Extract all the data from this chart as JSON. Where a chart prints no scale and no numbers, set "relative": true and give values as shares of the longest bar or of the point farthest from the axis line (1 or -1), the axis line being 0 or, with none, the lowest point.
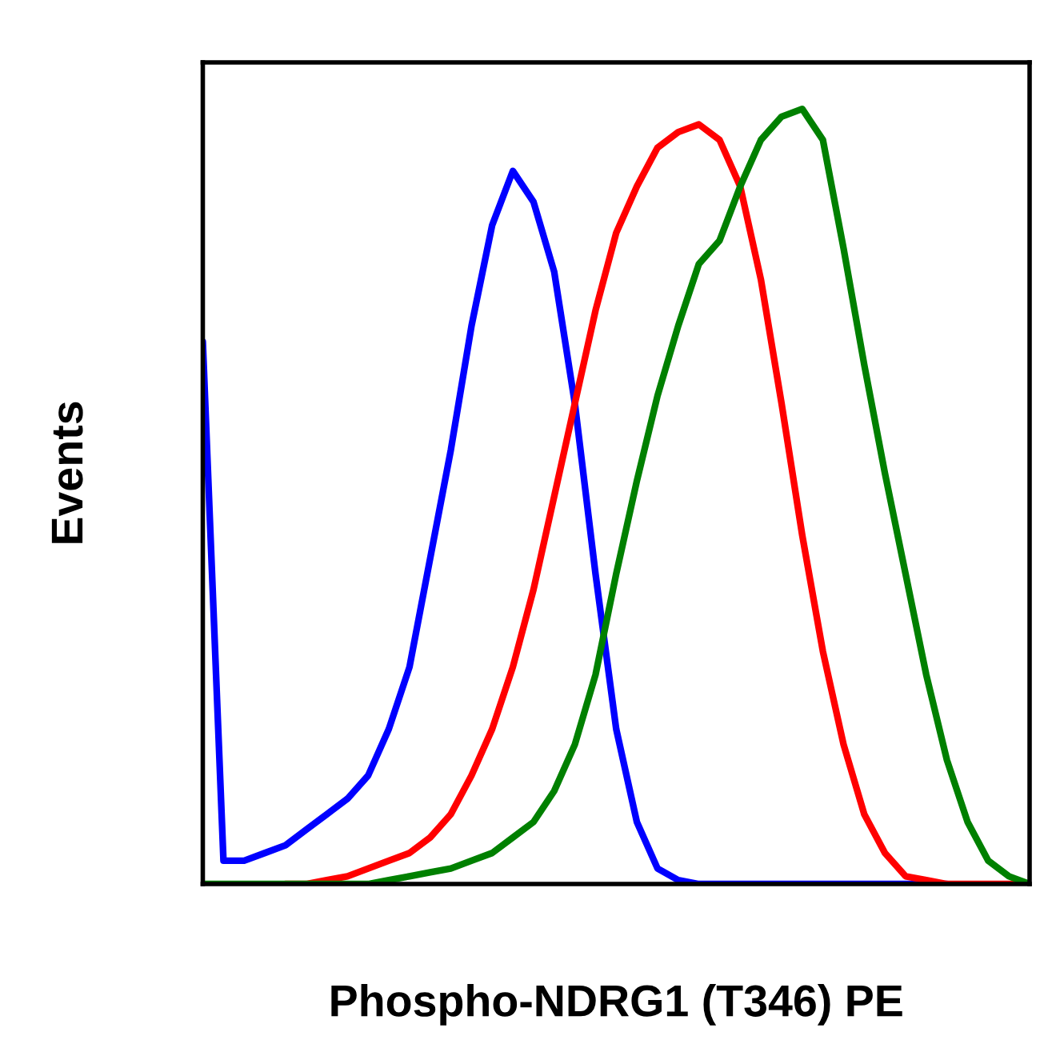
{
  "chart_data": {
    "type": "line",
    "relative": true,
    "xlabel": "Phospho-NDRG1 (T346) PE",
    "ylabel": "Events",
    "tick_labels": false,
    "grid": false,
    "legend": false,
    "categories": [
      null,
      null,
      null,
      null,
      null,
      null,
      null,
      null,
      null,
      null,
      null,
      null,
      null,
      null,
      null,
      null,
      null,
      null,
      null,
      null,
      null,
      null,
      null,
      null,
      null,
      null,
      null,
      null,
      null,
      null,
      null,
      null,
      null,
      null,
      null,
      null,
      null,
      null,
      null,
      null,
      null
    ],
    "series": [
      {
        "color": "#0000ff",
        "values": [
          0.7,
          0.03,
          0.03,
          0.04,
          0.05,
          0.07,
          0.09,
          0.11,
          0.14,
          0.2,
          0.28,
          0.42,
          0.56,
          0.72,
          0.85,
          0.92,
          0.88,
          0.79,
          0.62,
          0.4,
          0.2,
          0.08,
          0.02,
          0.005,
          0,
          0,
          0,
          0,
          0,
          0,
          0,
          0,
          0,
          0,
          0,
          0,
          0,
          null,
          null,
          null,
          null
        ]
      },
      {
        "color": "#ff0000",
        "values": [
          null,
          null,
          null,
          null,
          0,
          0,
          0.005,
          0.01,
          0.02,
          0.03,
          0.04,
          0.06,
          0.09,
          0.14,
          0.2,
          0.28,
          0.38,
          0.5,
          0.62,
          0.74,
          0.84,
          0.9,
          0.95,
          0.97,
          0.98,
          0.96,
          0.9,
          0.78,
          0.62,
          0.45,
          0.3,
          0.18,
          0.09,
          0.04,
          0.01,
          0.005,
          0,
          0,
          0,
          0,
          0
        ]
      },
      {
        "color": "#008000",
        "values": [
          0,
          0,
          0,
          0,
          0,
          0,
          0,
          0,
          0,
          0.005,
          0.01,
          0.015,
          0.02,
          0.03,
          0.04,
          0.06,
          0.08,
          0.12,
          0.18,
          0.27,
          0.4,
          0.52,
          0.63,
          0.72,
          0.8,
          0.83,
          0.9,
          0.96,
          0.99,
          1.0,
          0.96,
          0.82,
          0.67,
          0.53,
          0.4,
          0.27,
          0.16,
          0.08,
          0.03,
          0.01,
          0
        ]
      }
    ]
  }
}
